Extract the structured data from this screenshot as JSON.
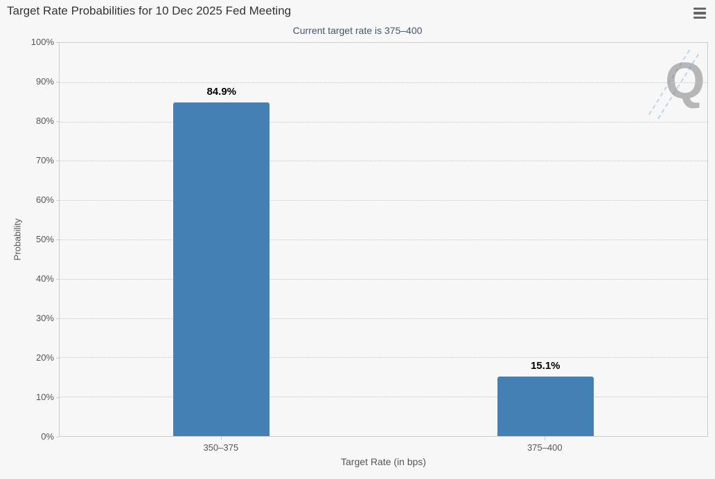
{
  "header": {
    "title": "Target Rate Probabilities for 10 Dec 2025 Fed Meeting",
    "subtitle": "Current target rate is 375–400"
  },
  "menu": {
    "icon": "hamburger-menu-icon"
  },
  "watermark": {
    "letter": "Q"
  },
  "chart_data": {
    "type": "bar",
    "title": "Target Rate Probabilities for 10 Dec 2025 Fed Meeting",
    "subtitle": "Current target rate is 375–400",
    "categories": [
      "350–375",
      "375–400"
    ],
    "values": [
      84.9,
      15.1
    ],
    "value_labels": [
      "84.9%",
      "15.1%"
    ],
    "xlabel": "Target Rate (in bps)",
    "ylabel": "Probability",
    "ylim": [
      0,
      100
    ],
    "ytick_step": 10,
    "ytick_labels": [
      "0%",
      "10%",
      "20%",
      "30%",
      "40%",
      "50%",
      "60%",
      "70%",
      "80%",
      "90%",
      "100%"
    ],
    "grid": "dotted-horizontal",
    "legend": "none",
    "bar_color": "#4580b4",
    "background_color": "#f7f7f7",
    "grid_color": "#c5c5c5",
    "axis_line_color": "#cccccc",
    "subtitle_color": "#3e576f",
    "title_color": "#333333",
    "label_color": "#555555"
  }
}
